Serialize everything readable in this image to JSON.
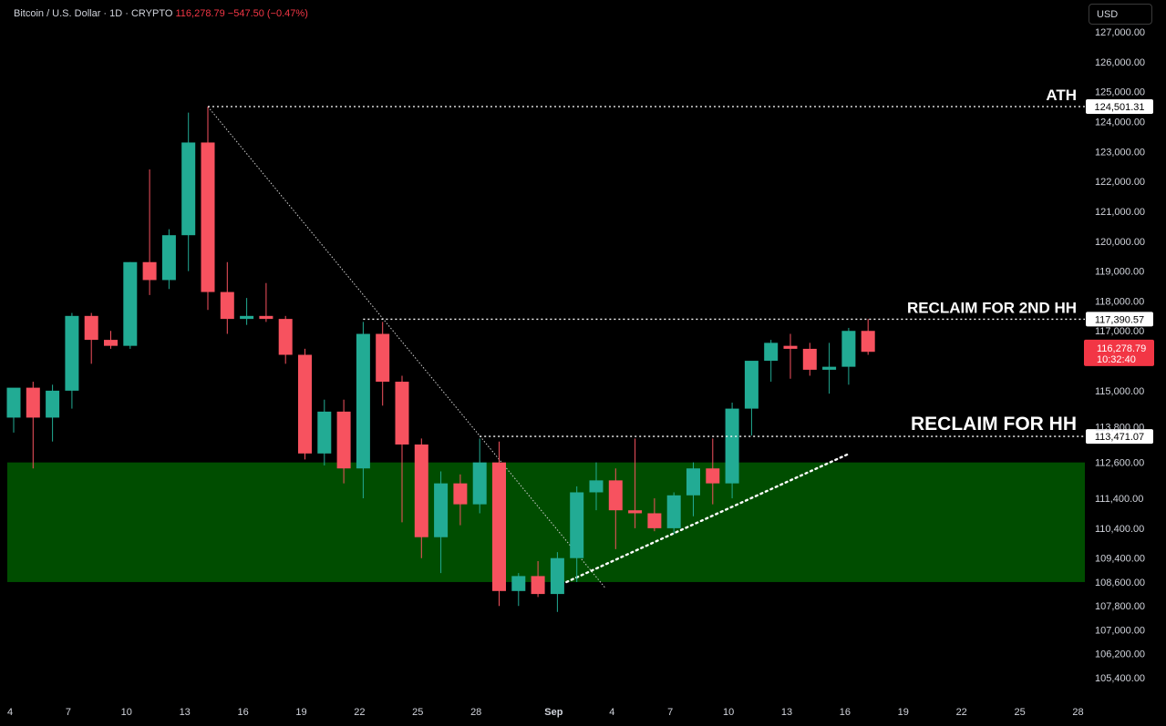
{
  "header": {
    "symbol": "Bitcoin / U.S. Dollar · 1D · CRYPTO",
    "price": "116,278.79",
    "change": "−547.50 (−0.47%)"
  },
  "currency_button": "USD",
  "colors": {
    "up": "#22ab94",
    "down": "#f7525f",
    "zone": "#004d00",
    "background": "#000000"
  },
  "chart_data": {
    "type": "candlestick",
    "symbol": "Bitcoin / U.S. Dollar",
    "interval": "1D",
    "ylim": [
      104800,
      127400
    ],
    "y_ticks": [
      127000,
      126000,
      125000,
      124000,
      123000,
      122000,
      121000,
      120000,
      119000,
      118000,
      117000,
      115000,
      113800,
      112600,
      111400,
      110400,
      109400,
      108600,
      107800,
      107000,
      106200,
      105400
    ],
    "y_tick_labels": [
      "127,000.00",
      "126,000.00",
      "125,000.00",
      "124,000.00",
      "123,000.00",
      "122,000.00",
      "121,000.00",
      "120,000.00",
      "119,000.00",
      "118,000.00",
      "117,000.00",
      "115,000.00",
      "113,800.00",
      "112,600.00",
      "111,400.00",
      "110,400.00",
      "109,400.00",
      "108,600.00",
      "107,800.00",
      "107,000.00",
      "106,200.00",
      "105,400.00"
    ],
    "x_ticks": [
      {
        "label": "4",
        "index": 0
      },
      {
        "label": "7",
        "index": 3
      },
      {
        "label": "10",
        "index": 6
      },
      {
        "label": "13",
        "index": 9
      },
      {
        "label": "16",
        "index": 12
      },
      {
        "label": "19",
        "index": 15
      },
      {
        "label": "22",
        "index": 18
      },
      {
        "label": "25",
        "index": 21
      },
      {
        "label": "28",
        "index": 24
      },
      {
        "label": "Sep",
        "index": 28
      },
      {
        "label": "4",
        "index": 31
      },
      {
        "label": "7",
        "index": 34
      },
      {
        "label": "10",
        "index": 37
      },
      {
        "label": "13",
        "index": 40
      },
      {
        "label": "16",
        "index": 43
      },
      {
        "label": "19",
        "index": 46
      },
      {
        "label": "22",
        "index": 49
      },
      {
        "label": "25",
        "index": 52
      },
      {
        "label": "28",
        "index": 55
      }
    ],
    "candles": [
      {
        "o": 114100,
        "h": 114900,
        "l": 113600,
        "c": 115100
      },
      {
        "o": 115100,
        "h": 115300,
        "l": 112400,
        "c": 114100
      },
      {
        "o": 114100,
        "h": 115200,
        "l": 113300,
        "c": 115000
      },
      {
        "o": 115000,
        "h": 117600,
        "l": 114400,
        "c": 117500
      },
      {
        "o": 117500,
        "h": 117600,
        "l": 115900,
        "c": 116700
      },
      {
        "o": 116700,
        "h": 117000,
        "l": 116400,
        "c": 116500
      },
      {
        "o": 116500,
        "h": 119300,
        "l": 116400,
        "c": 119300
      },
      {
        "o": 119300,
        "h": 122400,
        "l": 118200,
        "c": 118700
      },
      {
        "o": 118700,
        "h": 120400,
        "l": 118400,
        "c": 120200
      },
      {
        "o": 120200,
        "h": 124300,
        "l": 119000,
        "c": 123300
      },
      {
        "o": 123300,
        "h": 124500,
        "l": 117700,
        "c": 118300
      },
      {
        "o": 118300,
        "h": 119300,
        "l": 116900,
        "c": 117400
      },
      {
        "o": 117400,
        "h": 118100,
        "l": 117200,
        "c": 117500
      },
      {
        "o": 117500,
        "h": 118600,
        "l": 117300,
        "c": 117400
      },
      {
        "o": 117400,
        "h": 117500,
        "l": 115900,
        "c": 116200
      },
      {
        "o": 116200,
        "h": 116400,
        "l": 112700,
        "c": 112900
      },
      {
        "o": 112900,
        "h": 114700,
        "l": 112500,
        "c": 114300
      },
      {
        "o": 114300,
        "h": 114700,
        "l": 111900,
        "c": 112400
      },
      {
        "o": 112400,
        "h": 117300,
        "l": 111400,
        "c": 116900
      },
      {
        "o": 116900,
        "h": 117300,
        "l": 114500,
        "c": 115300
      },
      {
        "o": 115300,
        "h": 115500,
        "l": 110600,
        "c": 113200
      },
      {
        "o": 113200,
        "h": 113400,
        "l": 109400,
        "c": 110100
      },
      {
        "o": 110100,
        "h": 112300,
        "l": 108900,
        "c": 111900
      },
      {
        "o": 111900,
        "h": 112200,
        "l": 110500,
        "c": 111200
      },
      {
        "o": 111200,
        "h": 113400,
        "l": 110900,
        "c": 112600
      },
      {
        "o": 112600,
        "h": 113300,
        "l": 107800,
        "c": 108300
      },
      {
        "o": 108300,
        "h": 108900,
        "l": 107800,
        "c": 108800
      },
      {
        "o": 108800,
        "h": 109300,
        "l": 108100,
        "c": 108200
      },
      {
        "o": 108200,
        "h": 109600,
        "l": 107600,
        "c": 109400
      },
      {
        "o": 109400,
        "h": 111800,
        "l": 108600,
        "c": 111600
      },
      {
        "o": 111600,
        "h": 112600,
        "l": 111000,
        "c": 112000
      },
      {
        "o": 112000,
        "h": 112400,
        "l": 109700,
        "c": 111000
      },
      {
        "o": 111000,
        "h": 113400,
        "l": 110400,
        "c": 110900
      },
      {
        "o": 110900,
        "h": 111400,
        "l": 110300,
        "c": 110400
      },
      {
        "o": 110400,
        "h": 111600,
        "l": 110200,
        "c": 111500
      },
      {
        "o": 111500,
        "h": 112600,
        "l": 110800,
        "c": 112400
      },
      {
        "o": 112400,
        "h": 113400,
        "l": 111200,
        "c": 111900
      },
      {
        "o": 111900,
        "h": 114600,
        "l": 111400,
        "c": 114400
      },
      {
        "o": 114400,
        "h": 115800,
        "l": 113500,
        "c": 116000
      },
      {
        "o": 116000,
        "h": 116700,
        "l": 115300,
        "c": 116600
      },
      {
        "o": 116500,
        "h": 116900,
        "l": 115400,
        "c": 116400
      },
      {
        "o": 116400,
        "h": 116600,
        "l": 115500,
        "c": 115700
      },
      {
        "o": 115700,
        "h": 116600,
        "l": 114900,
        "c": 115800
      },
      {
        "o": 115800,
        "h": 117100,
        "l": 115200,
        "c": 117000
      },
      {
        "o": 117000,
        "h": 117400,
        "l": 116200,
        "c": 116300
      }
    ],
    "zone": {
      "from": 108600,
      "to": 112600
    },
    "annotations": [
      {
        "label": "ATH",
        "price_label": "124,501.31",
        "value": 124501.31,
        "from_index": 10
      },
      {
        "label": "RECLAIM FOR 2ND HH",
        "price_label": "117,390.57",
        "value": 117390.57,
        "from_index": 18
      },
      {
        "label": "RECLAIM FOR HH",
        "price_label": "113,471.07",
        "value": 113471.07,
        "from_index": 24
      }
    ],
    "last_price_label": "116,278.79",
    "countdown_label": "10:32:40",
    "last_price_value": 116278.79,
    "downtrend_line": [
      {
        "index": 10,
        "value": 124500
      },
      {
        "index": 30,
        "value": 108400
      }
    ],
    "uptrend_line": [
      {
        "index": 28,
        "value": 108600
      },
      {
        "index": 43,
        "value": 112900
      }
    ]
  }
}
